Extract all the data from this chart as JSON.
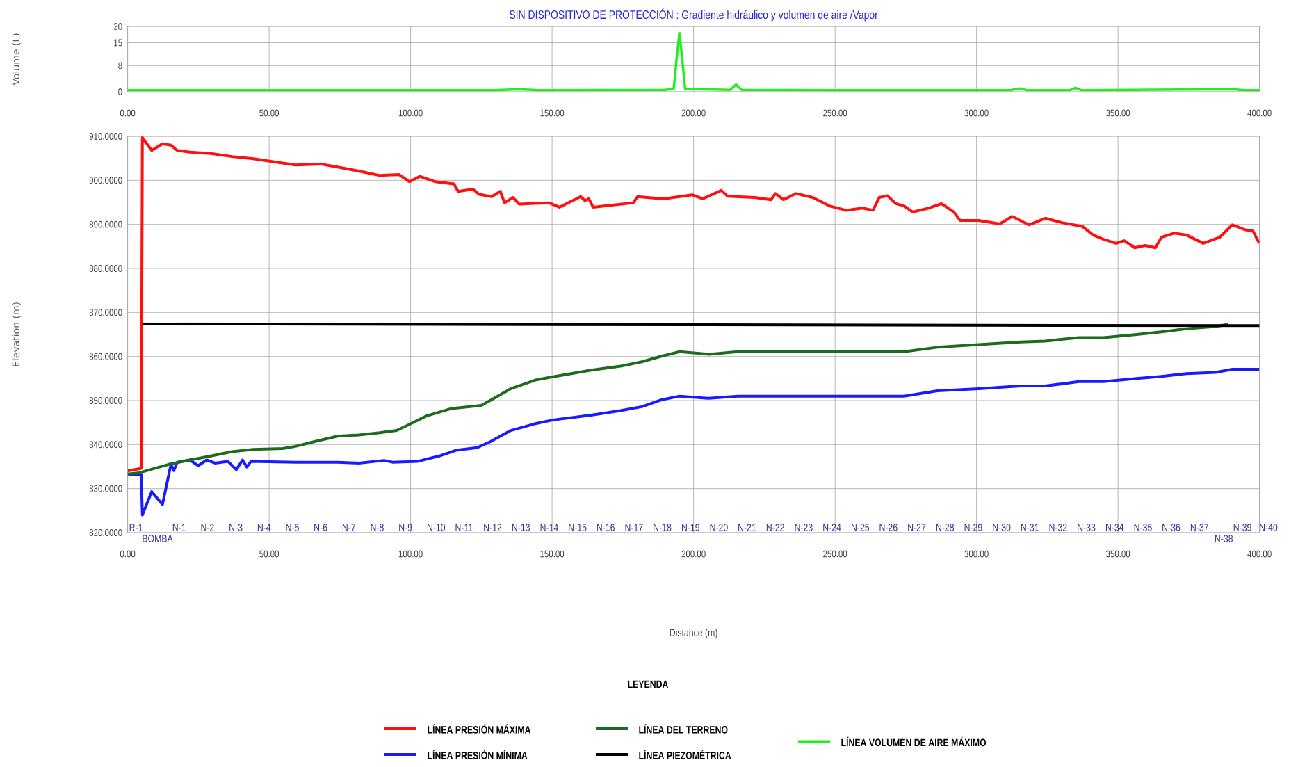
{
  "chart_data": [
    {
      "type": "line",
      "title": "SIN DISPOSITIVO DE PROTECCIÓN : Gradiente hidráulico y volumen de aire /Vapor",
      "ylabel": "Volume (L)",
      "xlim": [
        0,
        400
      ],
      "ylim": [
        0,
        20
      ],
      "xticks": [
        {
          "value": 0,
          "label": "0.00"
        },
        {
          "value": 50,
          "label": "50.00"
        },
        {
          "value": 100,
          "label": "100.00"
        },
        {
          "value": 150,
          "label": "150.00"
        },
        {
          "value": 200,
          "label": "200.00"
        },
        {
          "value": 250,
          "label": "250.00"
        },
        {
          "value": 300,
          "label": "300.00"
        },
        {
          "value": 350,
          "label": "350.00"
        },
        {
          "value": 400,
          "label": "400.00"
        }
      ],
      "yticks": [
        0,
        8,
        15,
        20
      ],
      "grid": true,
      "series": [
        {
          "name": "LÍNEA VOLUMEN DE AIRE MÁXIMO",
          "color": "#22ee22",
          "x": [
            0,
            130,
            138,
            145,
            190,
            193,
            194,
            195,
            196,
            197,
            200,
            213,
            215,
            217,
            250,
            312,
            315,
            318,
            333,
            335,
            337,
            390,
            395,
            400
          ],
          "values": [
            0.5,
            0.5,
            0.8,
            0.5,
            0.6,
            1,
            10,
            18,
            10,
            1,
            0.8,
            0.6,
            2.2,
            0.6,
            0.5,
            0.5,
            1,
            0.5,
            0.5,
            1.2,
            0.5,
            0.8,
            0.5,
            0.5
          ]
        }
      ]
    },
    {
      "type": "line",
      "xlabel": "Distance (m)",
      "ylabel": "Elevation (m)",
      "legend_title": "LEYENDA",
      "xlim": [
        0,
        400
      ],
      "ylim": [
        820,
        910
      ],
      "xticks": [
        {
          "value": 0,
          "label": "0.00"
        },
        {
          "value": 50,
          "label": "50.00"
        },
        {
          "value": 100,
          "label": "100.00"
        },
        {
          "value": 150,
          "label": "150.00"
        },
        {
          "value": 200,
          "label": "200.00"
        },
        {
          "value": 250,
          "label": "250.00"
        },
        {
          "value": 300,
          "label": "300.00"
        },
        {
          "value": 350,
          "label": "350.00"
        },
        {
          "value": 400,
          "label": "400.00"
        }
      ],
      "yticks": [
        {
          "value": 820,
          "label": "820.0000"
        },
        {
          "value": 830,
          "label": "830.0000"
        },
        {
          "value": 840,
          "label": "840.0000"
        },
        {
          "value": 850,
          "label": "850.0000"
        },
        {
          "value": 860,
          "label": "860.0000"
        },
        {
          "value": 870,
          "label": "870.0000"
        },
        {
          "value": 880,
          "label": "880.0000"
        },
        {
          "value": 890,
          "label": "890.0000"
        },
        {
          "value": 900,
          "label": "900.0000"
        },
        {
          "value": 910,
          "label": "910.0000"
        }
      ],
      "grid": true,
      "legend": "bottom",
      "series": [
        {
          "name": "LÍNEA PRESIÓN MÁXIMA",
          "color": "#ff1010",
          "x": [
            0,
            4.8,
            5.2,
            8.5,
            12.3,
            15.3,
            17.5,
            22,
            29.4,
            36.9,
            44.4,
            51.8,
            59.3,
            68.2,
            74.2,
            81.7,
            89.1,
            95.9,
            99.6,
            103.3,
            108.6,
            115.3,
            116.8,
            122,
            124.2,
            128.7,
            131.7,
            133.2,
            136.2,
            138.4,
            148.9,
            152.6,
            160.1,
            161.6,
            163,
            164.5,
            178.7,
            180.2,
            189.3,
            199.5,
            203.2,
            209.8,
            212,
            221.6,
            227.4,
            228.9,
            231.8,
            236.2,
            242.1,
            248,
            253.9,
            259.7,
            263.4,
            265.6,
            268.5,
            271.5,
            274.4,
            277.4,
            283.2,
            287.6,
            292,
            294.2,
            300.8,
            308.2,
            312.6,
            318.5,
            324.3,
            330.2,
            337.5,
            341.2,
            344.9,
            349.3,
            352.2,
            355.9,
            359.6,
            363.2,
            365.4,
            369.8,
            374.2,
            380.1,
            386,
            390.4,
            394.8,
            397.7,
            399.9
          ],
          "values": [
            834,
            834.6,
            909.7,
            906.8,
            908.3,
            908,
            906.8,
            906.4,
            906.1,
            905.4,
            904.9,
            904.2,
            903.5,
            903.7,
            903,
            902.1,
            901.1,
            901.3,
            899.7,
            900.9,
            899.7,
            899.2,
            897.5,
            898,
            896.8,
            896.3,
            897.5,
            894.9,
            896.1,
            894.6,
            894.9,
            893.9,
            896.3,
            895.4,
            895.8,
            893.9,
            894.9,
            896.3,
            895.8,
            896.7,
            895.8,
            897.7,
            896.4,
            896.1,
            895.6,
            897,
            895.6,
            897,
            896.1,
            894.2,
            893.2,
            893.7,
            893.2,
            896.1,
            896.5,
            894.7,
            894.2,
            892.8,
            893.7,
            894.7,
            892.8,
            890.9,
            890.9,
            890.1,
            891.8,
            889.9,
            891.4,
            890.4,
            889.5,
            887.6,
            886.6,
            885.7,
            886.3,
            884.7,
            885.2,
            884.7,
            887.1,
            888,
            887.6,
            885.7,
            887.1,
            889.9,
            888.8,
            888.5,
            885.7
          ]
        },
        {
          "name": "LÍNEA PRESIÓN MÍNIMA",
          "color": "#1a1aff",
          "x": [
            0,
            4.8,
            5.2,
            8.5,
            12.3,
            15.3,
            16.3,
            17.5,
            22,
            24.9,
            27.9,
            30.9,
            35.4,
            38.4,
            40.6,
            42.1,
            43.6,
            59.3,
            74.2,
            81.7,
            90.6,
            93.6,
            102.6,
            110.1,
            116,
            123.5,
            128,
            135.4,
            144.4,
            150.4,
            163.8,
            174.2,
            181.7,
            188.9,
            195.1,
            205.4,
            215.7,
            274.4,
            286.2,
            300.8,
            315.5,
            324.3,
            336.1,
            344.9,
            356.6,
            365.4,
            374.2,
            384.5,
            390.4,
            399.9
          ],
          "values": [
            833.3,
            833.1,
            824,
            829.3,
            826.4,
            835.5,
            834.1,
            836,
            836.5,
            835.2,
            836.5,
            835.8,
            836.2,
            834.3,
            836.5,
            834.9,
            836.2,
            836,
            836,
            835.8,
            836.4,
            836,
            836.2,
            837.4,
            838.7,
            839.3,
            840.6,
            843.2,
            844.8,
            845.6,
            846.7,
            847.7,
            848.6,
            850.2,
            851,
            850.5,
            851,
            851,
            852.2,
            852.7,
            853.3,
            853.3,
            854.3,
            854.3,
            855,
            855.5,
            856.1,
            856.4,
            857.1,
            857.1
          ]
        },
        {
          "name": "LÍNEA DEL TERRENO",
          "color": "#1e6b1e",
          "x": [
            0,
            4.1,
            14.5,
            22,
            29.4,
            36.9,
            44.4,
            54.8,
            59.3,
            66.8,
            74.2,
            81.7,
            89.1,
            95.1,
            99.6,
            105.6,
            114.5,
            125,
            129.5,
            135.4,
            144.4,
            150.4,
            163.8,
            174.2,
            181.7,
            188.9,
            195.1,
            205.4,
            215.7,
            249.5,
            274.4,
            286.2,
            300.8,
            315.5,
            324.3,
            336.1,
            344.9,
            356.6,
            365.4,
            374.2,
            384.5,
            388.9
          ],
          "values": [
            833.3,
            833.6,
            835.5,
            836.5,
            837.4,
            838.4,
            838.9,
            839.1,
            839.6,
            840.8,
            841.9,
            842.2,
            842.7,
            843.2,
            844.6,
            846.5,
            848.2,
            848.9,
            850.5,
            852.7,
            854.7,
            855.4,
            856.9,
            857.8,
            858.8,
            860.1,
            861.1,
            860.5,
            861.1,
            861.1,
            861.1,
            862.1,
            862.7,
            863.3,
            863.5,
            864.3,
            864.3,
            865,
            865.6,
            866.3,
            866.8,
            867.3
          ]
        },
        {
          "name": "LÍNEA PIEZOMÉTRICA",
          "color": "#000000",
          "x": [
            5.2,
            200,
            400
          ],
          "values": [
            867.4,
            867.2,
            867
          ]
        }
      ],
      "annotations": [
        "R-1",
        "BOMBA",
        "N-1",
        "N-2",
        "N-3",
        "N-4",
        "N-5",
        "N-6",
        "N-7",
        "N-8",
        "N-9",
        "N-10",
        "N-11",
        "N-12",
        "N-13",
        "N-14",
        "N-15",
        "N-16",
        "N-17",
        "N-18",
        "N-19",
        "N-20",
        "N-21",
        "N-22",
        "N-23",
        "N-24",
        "N-25",
        "N-26",
        "N-27",
        "N-28",
        "N-29",
        "N-30",
        "N-31",
        "N-32",
        "N-33",
        "N-34",
        "N-35",
        "N-36",
        "N-37",
        "N-38",
        "N-39",
        "N-40"
      ]
    }
  ]
}
